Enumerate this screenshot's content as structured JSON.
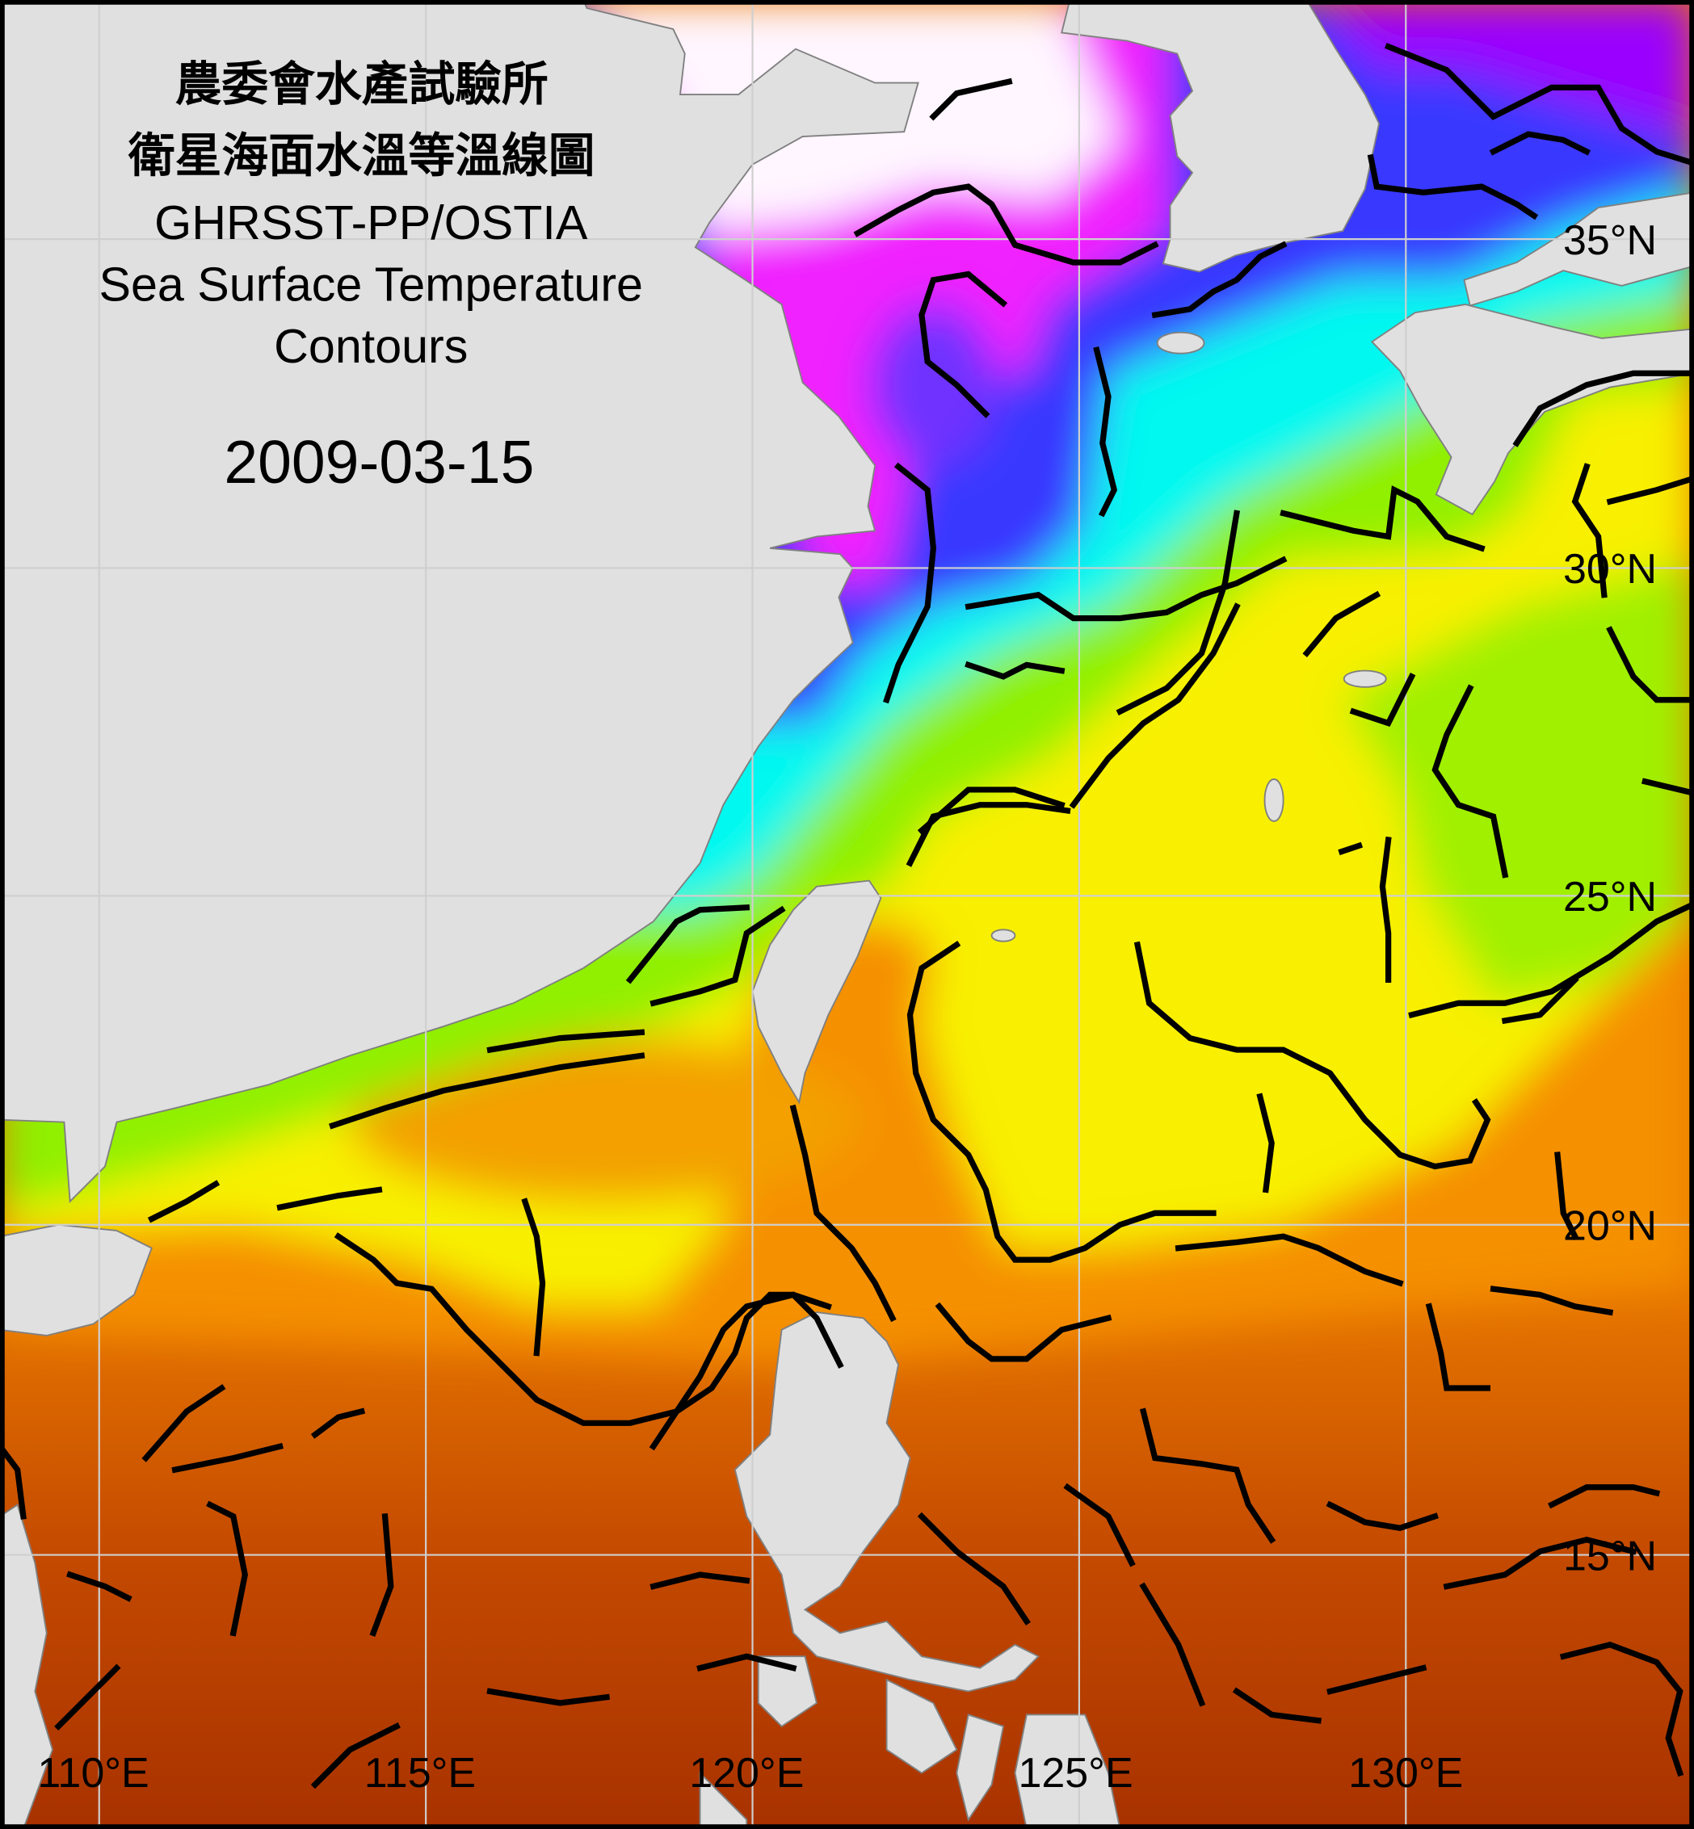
{
  "title": {
    "line1": "農委會水產試驗所",
    "line2": "衛星海面水溫等溫線圖",
    "line3": "GHRSST-PP/OSTIA",
    "line4": "Sea Surface Temperature",
    "line5": "Contours"
  },
  "date": "2009-03-15",
  "lat_labels": [
    "35°N",
    "30°N",
    "25°N",
    "20°N",
    "15°N"
  ],
  "lon_labels": [
    "110°E",
    "115°E",
    "120°E",
    "125°E",
    "130°E"
  ],
  "colors": {
    "land": "#e0e0e0",
    "coastline": "#808080",
    "gridline": "#cfcfcf",
    "contour": "#000000",
    "sst_scale": [
      "#fff6ff",
      "#f020ff",
      "#9a00ff",
      "#3838ff",
      "#00f8f0",
      "#90f000",
      "#f8f000",
      "#f59000",
      "#a83200"
    ]
  }
}
